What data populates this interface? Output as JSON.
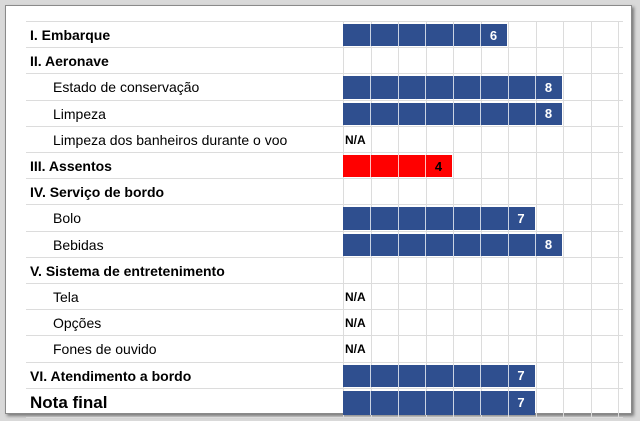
{
  "colors": {
    "bar_default": "#2f4f8f",
    "bar_low": "#ff0000"
  },
  "rows": [
    {
      "label": "I. Embarque",
      "kind": "section",
      "score": 6,
      "score_text": "6"
    },
    {
      "label": "II. Aeronave",
      "kind": "section",
      "score": null
    },
    {
      "label": "Estado de conservação",
      "kind": "sub",
      "score": 8,
      "score_text": "8"
    },
    {
      "label": "Limpeza",
      "kind": "sub",
      "score": 8,
      "score_text": "8"
    },
    {
      "label": "Limpeza dos banheiros durante o voo",
      "kind": "sub",
      "score": null,
      "na_text": "N/A"
    },
    {
      "label": "III. Assentos",
      "kind": "section",
      "score": 4,
      "score_text": "4",
      "color": "red"
    },
    {
      "label": "IV. Serviço de bordo",
      "kind": "section",
      "score": null
    },
    {
      "label": "Bolo",
      "kind": "sub",
      "score": 7,
      "score_text": "7"
    },
    {
      "label": "Bebidas",
      "kind": "sub",
      "score": 8,
      "score_text": "8"
    },
    {
      "label": "V. Sistema de entretenimento",
      "kind": "section",
      "score": null
    },
    {
      "label": "Tela",
      "kind": "sub",
      "score": null,
      "na_text": "N/A"
    },
    {
      "label": "Opções",
      "kind": "sub",
      "score": null,
      "na_text": "N/A"
    },
    {
      "label": "Fones de ouvido",
      "kind": "sub",
      "score": null,
      "na_text": "N/A"
    },
    {
      "label": "VI. Atendimento a bordo",
      "kind": "section",
      "score": 7,
      "score_text": "7"
    },
    {
      "label": "Nota final",
      "kind": "final",
      "score": 7,
      "score_text": "7"
    }
  ]
}
